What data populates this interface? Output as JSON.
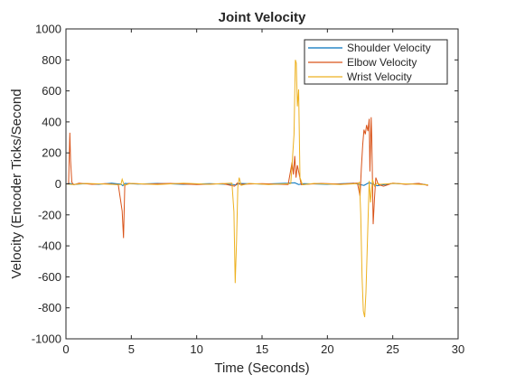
{
  "chart_data": {
    "type": "line",
    "title": "Joint Velocity",
    "xlabel": "Time (Seconds)",
    "ylabel": "Velocity (Encoder Ticks/Second",
    "xlim": [
      0,
      30
    ],
    "ylim": [
      -1000,
      1000
    ],
    "x_ticks": [
      0,
      5,
      10,
      15,
      20,
      25,
      30
    ],
    "y_ticks": [
      -1000,
      -800,
      -600,
      -400,
      -200,
      0,
      200,
      400,
      600,
      800,
      1000
    ],
    "grid": false,
    "legend_position": "top-right",
    "series": [
      {
        "name": "Shoulder Velocity",
        "color": "#0072BD",
        "x": [
          0,
          0.3,
          0.6,
          1.5,
          2.5,
          3.5,
          4.2,
          4.35,
          4.5,
          5.5,
          7,
          9,
          11,
          12.8,
          13.0,
          13.2,
          15,
          17,
          17.5,
          17.8,
          18.2,
          20,
          22,
          22.8,
          23.2,
          23.8,
          24.3,
          25,
          26,
          27,
          27.7
        ],
        "y": [
          0,
          3,
          -4,
          2,
          -3,
          4,
          -2,
          -12,
          3,
          -2,
          3,
          -3,
          2,
          -4,
          -8,
          3,
          -2,
          4,
          7,
          -4,
          2,
          -3,
          4,
          -10,
          9,
          -12,
          -6,
          3,
          -2,
          2,
          -7
        ]
      },
      {
        "name": "Elbow Velocity",
        "color": "#D95319",
        "x": [
          0,
          0.2,
          0.3,
          0.35,
          0.45,
          0.6,
          1,
          2,
          3,
          4.0,
          4.3,
          4.4,
          4.5,
          4.8,
          6,
          8,
          10,
          12,
          12.9,
          13.1,
          13.3,
          15,
          17,
          17.3,
          17.4,
          17.5,
          17.6,
          17.7,
          18,
          19.5,
          21,
          22.3,
          22.5,
          22.6,
          22.7,
          22.8,
          22.9,
          23.0,
          23.1,
          23.2,
          23.25,
          23.35,
          23.4,
          23.5,
          23.6,
          23.7,
          23.9,
          24.3,
          25,
          26,
          27,
          27.7
        ],
        "y": [
          0,
          0,
          330,
          150,
          10,
          -5,
          4,
          -3,
          2,
          -5,
          -175,
          -350,
          -10,
          3,
          -2,
          3,
          -4,
          2,
          -15,
          5,
          -3,
          2,
          -4,
          140,
          60,
          180,
          40,
          120,
          -5,
          3,
          -2,
          5,
          -80,
          100,
          250,
          350,
          320,
          380,
          340,
          420,
          80,
          430,
          280,
          -260,
          -100,
          40,
          -5,
          -15,
          5,
          -3,
          3,
          -10
        ]
      },
      {
        "name": "Wrist Velocity",
        "color": "#EDB120",
        "x": [
          0,
          0.5,
          1.5,
          3,
          4.2,
          4.3,
          4.45,
          5,
          7,
          9,
          11,
          12.7,
          12.85,
          12.95,
          13.05,
          13.15,
          13.25,
          13.4,
          14,
          15.5,
          17.2,
          17.3,
          17.45,
          17.55,
          17.62,
          17.7,
          17.8,
          17.9,
          18.1,
          19,
          21,
          22.3,
          22.45,
          22.55,
          22.65,
          22.75,
          22.85,
          22.95,
          23.05,
          23.2,
          23.3,
          23.45,
          23.6,
          23.8,
          24,
          25,
          26.5,
          27.7
        ],
        "y": [
          0,
          -4,
          3,
          -2,
          -5,
          30,
          -8,
          3,
          -4,
          4,
          -3,
          5,
          -180,
          -640,
          -370,
          -20,
          40,
          -10,
          3,
          -4,
          2,
          130,
          320,
          800,
          780,
          500,
          610,
          40,
          -5,
          3,
          -4,
          2,
          10,
          -190,
          -600,
          -820,
          -860,
          -700,
          -400,
          20,
          -120,
          30,
          -15,
          5,
          -3,
          3,
          -2,
          -6
        ]
      }
    ]
  }
}
